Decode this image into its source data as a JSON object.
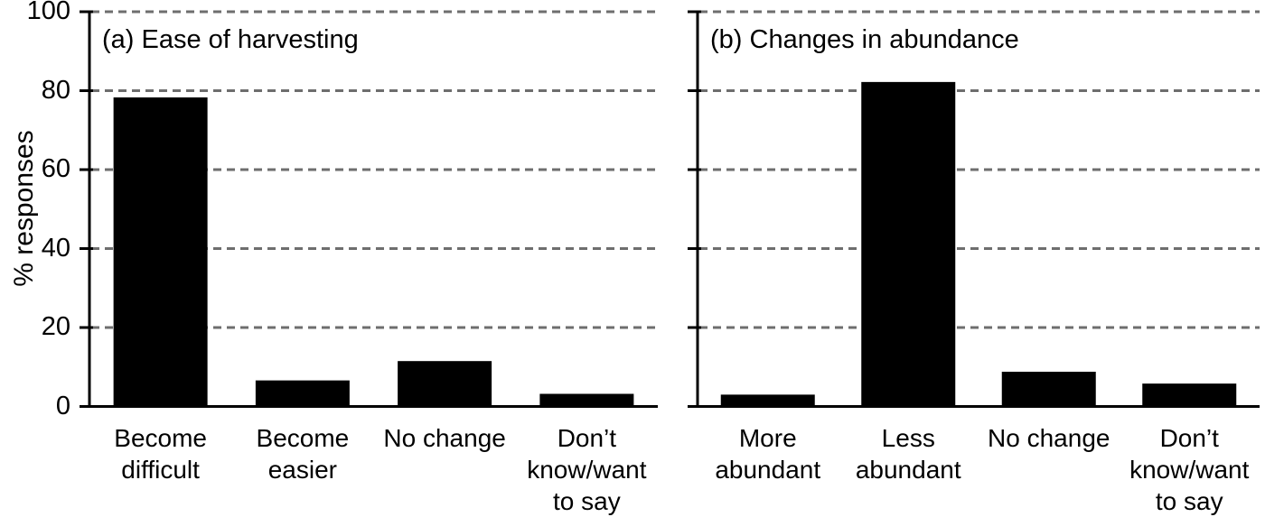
{
  "colors": {
    "bar": "#000000",
    "axis": "#000000",
    "gridline": "#6e6e6e",
    "text": "#000000",
    "background": "#ffffff"
  },
  "axis": {
    "ylabel": "% responses",
    "yticks": [
      0,
      20,
      40,
      60,
      80,
      100
    ],
    "ylim": [
      0,
      100
    ],
    "grid": "horizontal dashed lines at each tick above 0"
  },
  "chart_data": [
    {
      "type": "bar",
      "panel_label": "(a) Ease of harvesting",
      "categories": [
        "Become\ndifficult",
        "Become\neasier",
        "No change",
        "Don’t\nknow/want\nto say"
      ],
      "values": [
        78.3,
        6.6,
        11.5,
        3.2
      ],
      "xlabel": "",
      "ylabel": "% responses",
      "ylim": [
        0,
        100
      ],
      "legend": "none"
    },
    {
      "type": "bar",
      "panel_label": "(b) Changes in abundance",
      "categories": [
        "More\nabundant",
        "Less\nabundant",
        "No change",
        "Don’t\nknow/want\nto say"
      ],
      "values": [
        3.0,
        82.2,
        8.8,
        5.8
      ],
      "xlabel": "",
      "ylabel": "",
      "ylim": [
        0,
        100
      ],
      "legend": "none"
    }
  ]
}
